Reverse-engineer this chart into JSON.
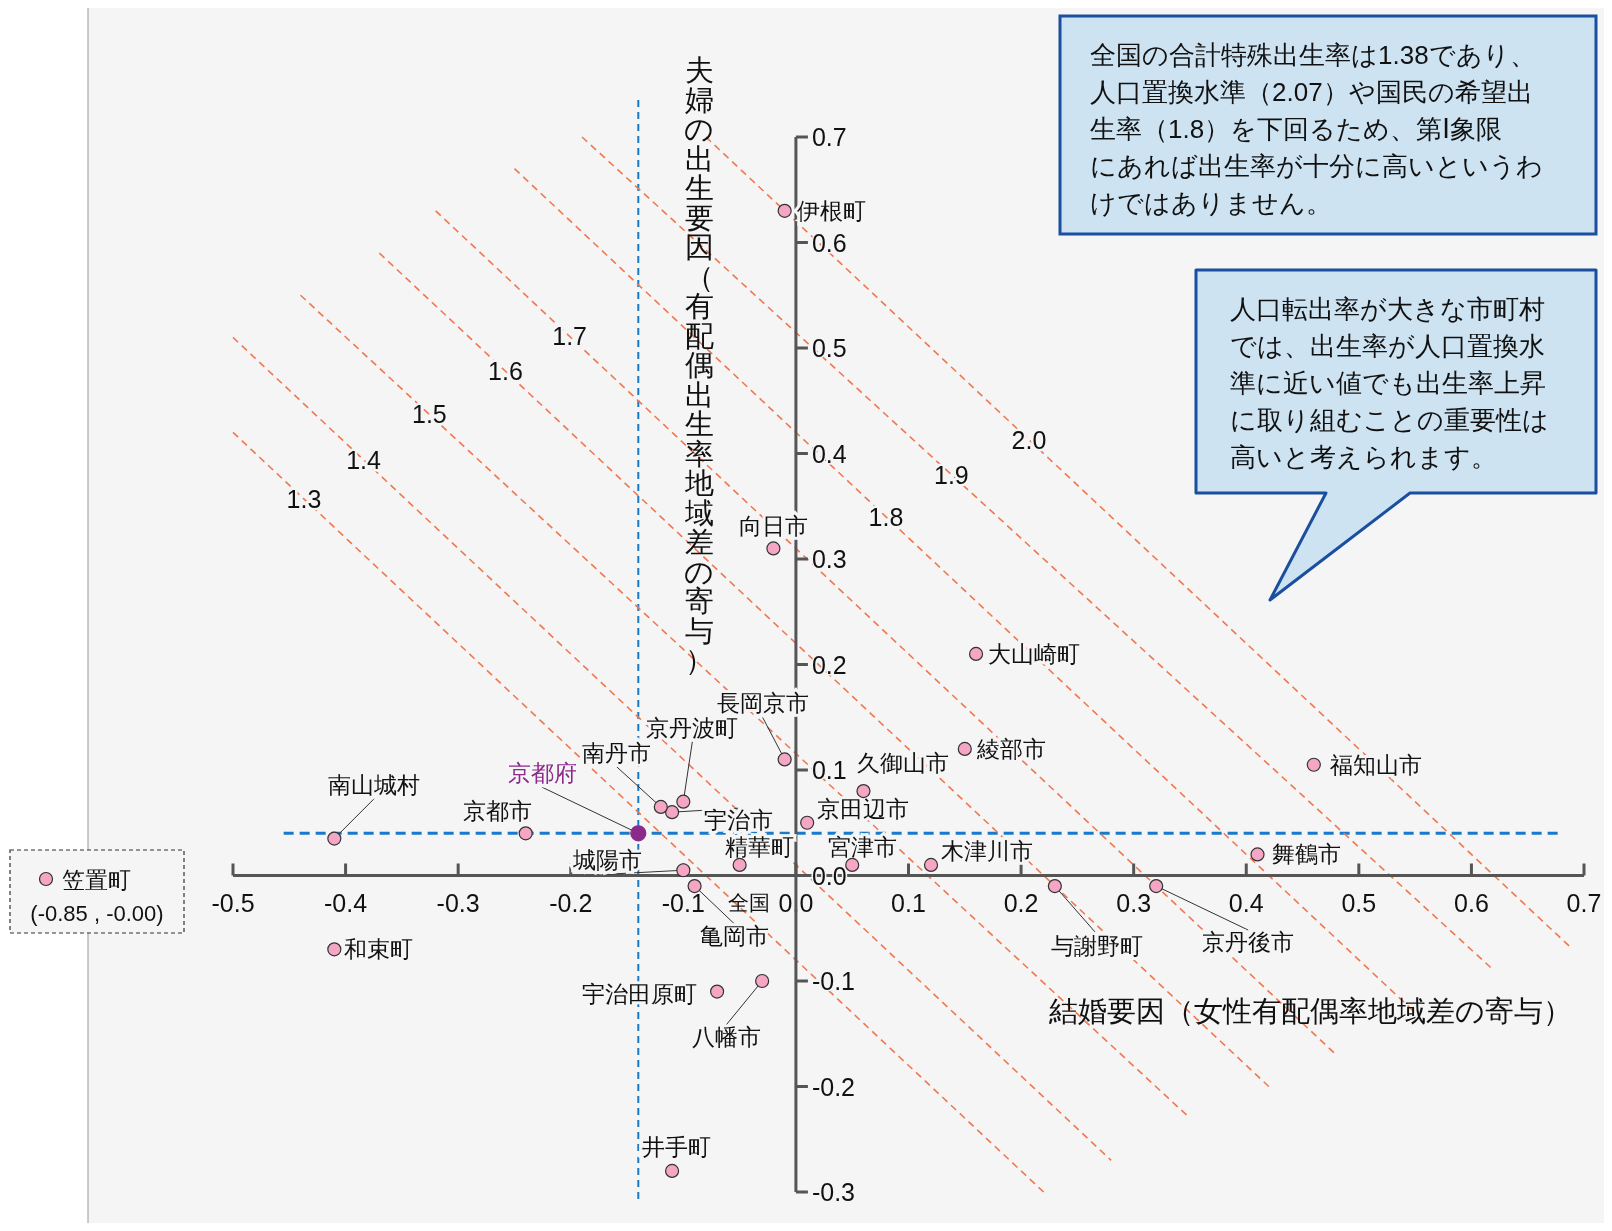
{
  "chart_data": {
    "type": "scatter",
    "xlabel": "結婚要因（女性有配偶率地域差の寄与）",
    "ylabel": "夫婦の出生要因（有配偶出生率地域差の寄与）",
    "xlim": [
      -0.5,
      0.7
    ],
    "ylim": [
      -0.3,
      0.7
    ],
    "xticks": [
      -0.5,
      -0.4,
      -0.3,
      -0.2,
      -0.1,
      {
        "value": 0,
        "label": "0.0"
      },
      0.1,
      0.2,
      0.3,
      0.4,
      0.5,
      0.6,
      0.7
    ],
    "yticks": [
      -0.3,
      -0.2,
      -0.1,
      {
        "value": 0,
        "label": "0.0"
      },
      0.1,
      0.2,
      0.3,
      0.4,
      0.5,
      0.6,
      0.7
    ],
    "series": [
      {
        "marker": "circle",
        "color": "#f4a6c4",
        "x": [
          -0.01,
          -0.02,
          0.16,
          -0.01,
          0.15,
          0.46,
          0.06,
          0.01,
          -0.11,
          -0.1,
          -0.12,
          -0.14,
          -0.24,
          -0.41,
          -0.05,
          -0.1,
          -0.09,
          0.05,
          0.12,
          0.41,
          0.23,
          0.32,
          -0.41,
          -0.07,
          -0.03,
          -0.11
        ],
        "values": [
          0.63,
          0.31,
          0.21,
          0.11,
          0.12,
          0.105,
          0.08,
          0.05,
          0.06,
          0.07,
          0.065,
          0.04,
          0.04,
          0.035,
          0.01,
          0.005,
          -0.01,
          0.01,
          0.01,
          0.02,
          -0.01,
          -0.01,
          -0.07,
          -0.11,
          -0.1,
          -0.28
        ],
        "colors": [
          "#f4a6c4",
          "#f4a6c4",
          "#f4a6c4",
          "#f4a6c4",
          "#f4a6c4",
          "#f4a6c4",
          "#f4a6c4",
          "#f4a6c4",
          "#f4a6c4",
          "#f4a6c4",
          "#f4a6c4",
          "#8b2a8a",
          "#f4a6c4",
          "#f4a6c4",
          "#f4a6c4",
          "#f4a6c4",
          "#f4a6c4",
          "#f4a6c4",
          "#f4a6c4",
          "#f4a6c4",
          "#f4a6c4",
          "#f4a6c4",
          "#f4a6c4",
          "#f4a6c4",
          "#f4a6c4",
          "#f4a6c4"
        ]
      },
      {
        "type": "line",
        "name": "1.3",
        "color": "#f07850",
        "line_style": "dashed",
        "x": [
          -0.5,
          0.22
        ],
        "values": [
          0.42,
          -0.3
        ]
      },
      {
        "type": "line",
        "name": "1.4",
        "color": "#f07850",
        "line_style": "dashed",
        "x": [
          -0.5,
          0.28
        ],
        "values": [
          0.51,
          -0.27
        ]
      },
      {
        "type": "line",
        "name": "1.5",
        "color": "#f07850",
        "line_style": "dashed",
        "x": [
          -0.44,
          0.35
        ],
        "values": [
          0.55,
          -0.23
        ]
      },
      {
        "type": "line",
        "name": "1.6",
        "color": "#f07850",
        "line_style": "dashed",
        "x": [
          -0.37,
          0.42
        ],
        "values": [
          0.59,
          -0.2
        ]
      },
      {
        "type": "line",
        "name": "1.7",
        "color": "#f07850",
        "line_style": "dashed",
        "x": [
          -0.32,
          0.48
        ],
        "values": [
          0.63,
          -0.17
        ]
      },
      {
        "type": "line",
        "name": "1.8",
        "color": "#f07850",
        "line_style": "dashed",
        "x": [
          -0.25,
          0.55
        ],
        "values": [
          0.67,
          -0.13
        ]
      },
      {
        "type": "line",
        "name": "1.9",
        "color": "#f07850",
        "line_style": "dashed",
        "x": [
          -0.19,
          0.62
        ],
        "values": [
          0.7,
          -0.09
        ]
      },
      {
        "type": "line",
        "name": "2.0",
        "color": "#f07850",
        "line_style": "dashed",
        "x": [
          -0.08,
          0.69
        ],
        "values": [
          0.7,
          -0.07
        ]
      }
    ],
    "ref_lines": [
      {
        "axis": "x",
        "value": -0.14,
        "color": "#1a7ac8",
        "line_style": "dashed"
      },
      {
        "axis": "y",
        "value": 0.04,
        "color": "#1a7ac8",
        "line_style": "dashed"
      }
    ],
    "annotations": [
      {
        "text": "伊根町",
        "x": -0.01,
        "y": 0.63
      },
      {
        "text": "向日市",
        "x": -0.02,
        "y": 0.31
      },
      {
        "text": "大山崎町",
        "x": 0.16,
        "y": 0.21
      },
      {
        "text": "長岡京市",
        "x": -0.01,
        "y": 0.11
      },
      {
        "text": "綾部市",
        "x": 0.15,
        "y": 0.12
      },
      {
        "text": "福知山市",
        "x": 0.46,
        "y": 0.105
      },
      {
        "text": "久御山市",
        "x": 0.06,
        "y": 0.08
      },
      {
        "text": "京田辺市",
        "x": 0.01,
        "y": 0.05
      },
      {
        "text": "宇治市",
        "x": -0.11,
        "y": 0.06
      },
      {
        "text": "京丹波町",
        "x": -0.1,
        "y": 0.07
      },
      {
        "text": "南丹市",
        "x": -0.12,
        "y": 0.065
      },
      {
        "text": "京都府",
        "x": -0.14,
        "y": 0.04
      },
      {
        "text": "京都市",
        "x": -0.24,
        "y": 0.04
      },
      {
        "text": "南山城村",
        "x": -0.41,
        "y": 0.035
      },
      {
        "text": "精華町",
        "x": -0.05,
        "y": 0.01
      },
      {
        "text": "城陽市",
        "x": -0.1,
        "y": 0.005
      },
      {
        "text": "亀岡市",
        "x": -0.09,
        "y": -0.01
      },
      {
        "text": "宮津市",
        "x": 0.05,
        "y": 0.01
      },
      {
        "text": "木津川市",
        "x": 0.12,
        "y": 0.01
      },
      {
        "text": "舞鶴市",
        "x": 0.41,
        "y": 0.02
      },
      {
        "text": "与謝野町",
        "x": 0.23,
        "y": -0.01
      },
      {
        "text": "京丹後市",
        "x": 0.32,
        "y": -0.01
      },
      {
        "text": "和束町",
        "x": -0.41,
        "y": -0.07
      },
      {
        "text": "宇治田原町",
        "x": -0.07,
        "y": -0.11
      },
      {
        "text": "八幡市",
        "x": -0.03,
        "y": -0.1
      },
      {
        "text": "井手町",
        "x": -0.11,
        "y": -0.28
      },
      "全国",
      "全国の合計特殊出生率は1.38であり、人口置換水準（2.07）や国民の希望出生率（1.8）を下回るため、第Ⅰ象限にあれば出生率が十分に高いというわけではありません。",
      "人口転出率が大きな市町村では、出生率が人口置換水準に近い値でも出生率上昇に取り組むことの重要性は高いと考えられます。",
      "笠置町",
      "(-0.85 , -0.00)"
    ]
  }
}
